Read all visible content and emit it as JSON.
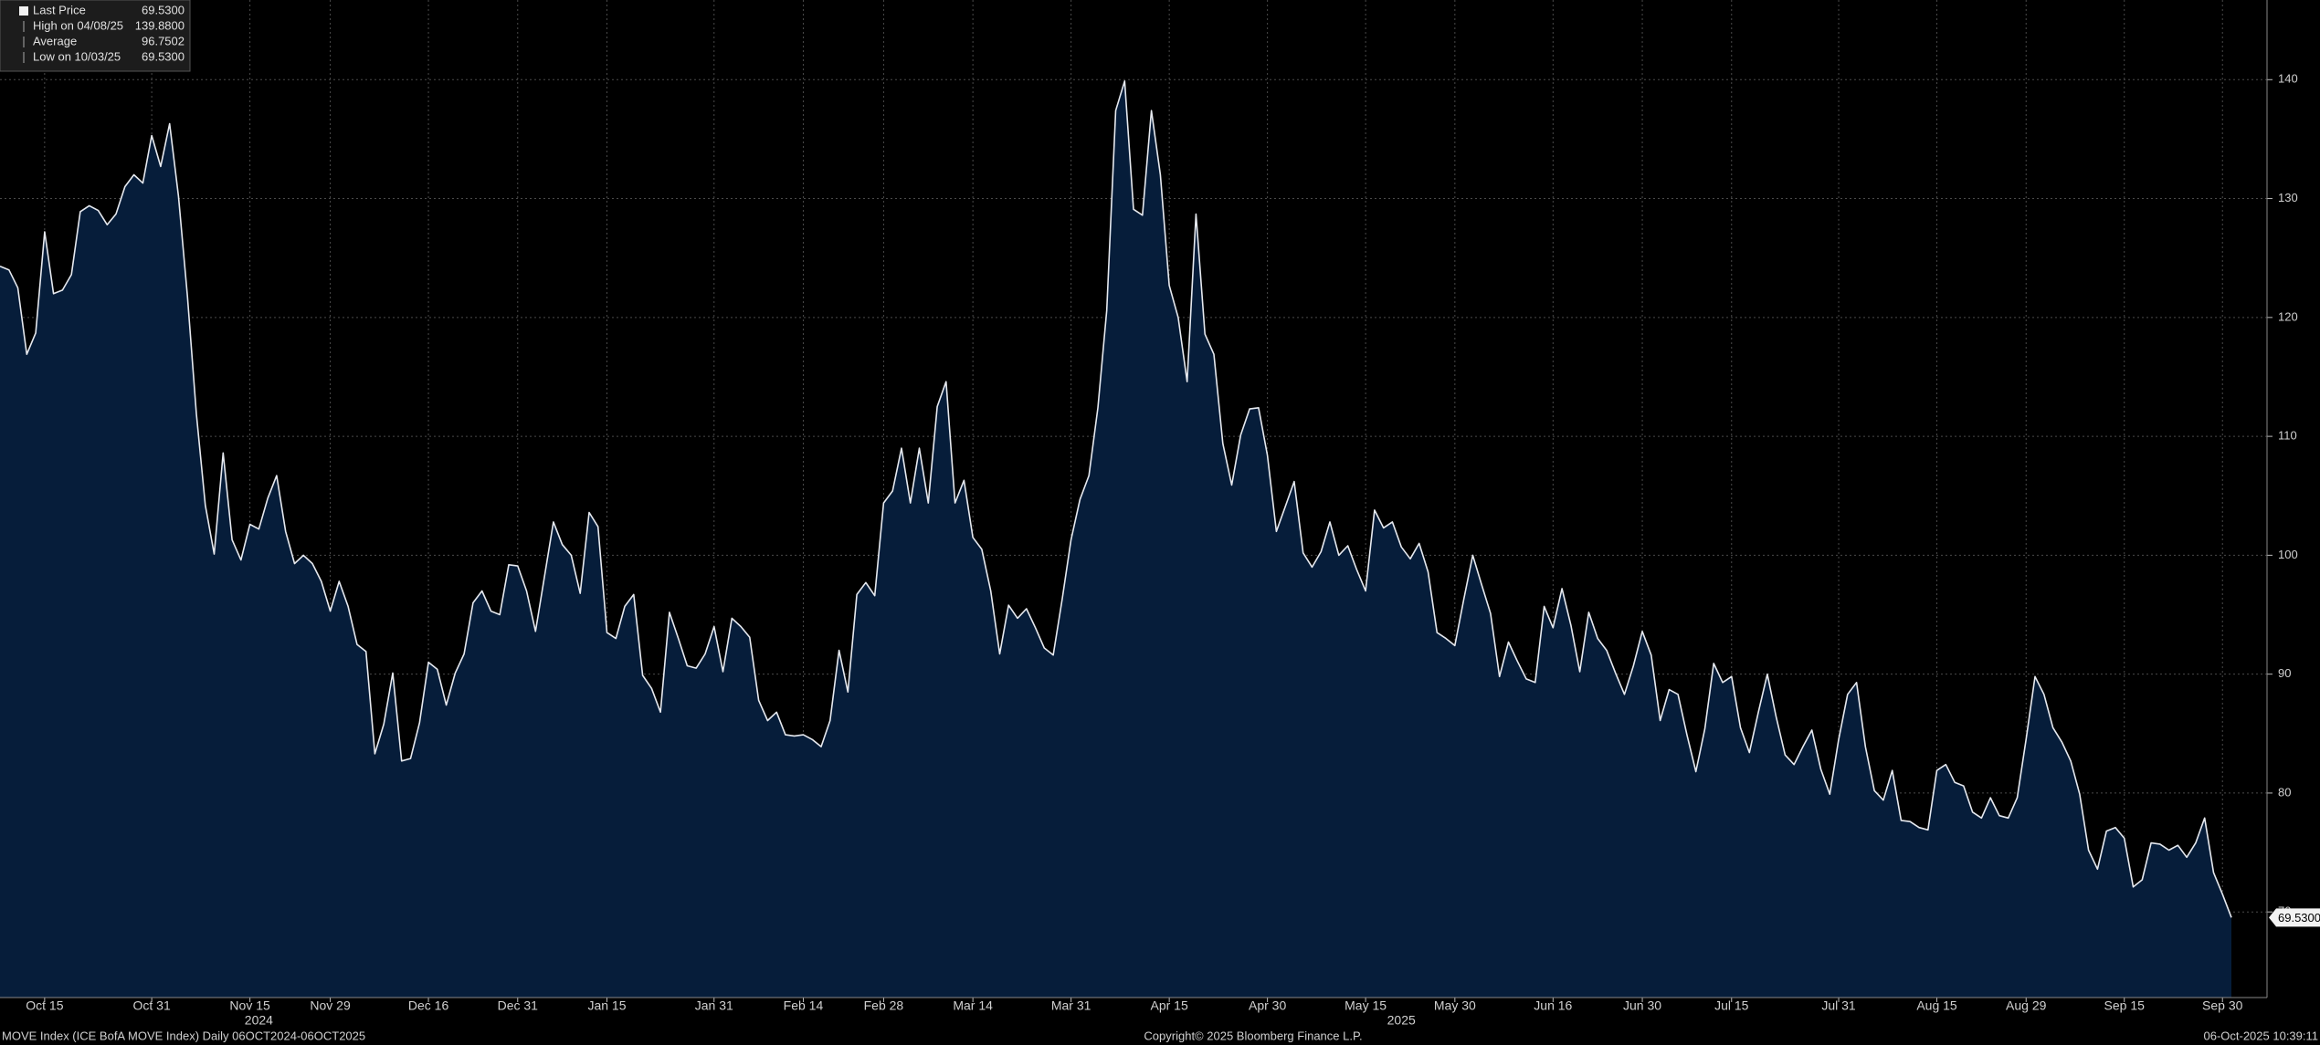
{
  "chart_data": {
    "type": "area",
    "legend": [
      {
        "label": "Last Price",
        "value": 69.53,
        "value_label": "69.5300"
      },
      {
        "label": "High on 04/08/25",
        "value": 139.88,
        "value_label": "139.8800"
      },
      {
        "label": "Average",
        "value": 96.7502
      },
      {
        "label": "Low on 10/03/25",
        "value": 69.53,
        "value_label": "69.5300"
      }
    ],
    "categories": [
      null,
      null,
      null,
      null,
      null,
      "Oct 15",
      null,
      null,
      null,
      null,
      null,
      null,
      null,
      null,
      null,
      null,
      null,
      "Oct 31",
      null,
      null,
      null,
      null,
      null,
      null,
      null,
      null,
      null,
      null,
      "Nov 15",
      null,
      null,
      null,
      null,
      null,
      null,
      null,
      null,
      "Nov 29",
      null,
      null,
      null,
      null,
      null,
      null,
      null,
      null,
      null,
      null,
      "Dec 16",
      null,
      null,
      null,
      null,
      null,
      null,
      null,
      null,
      null,
      "Dec 31",
      null,
      null,
      null,
      null,
      null,
      null,
      null,
      null,
      null,
      "Jan 15",
      null,
      null,
      null,
      null,
      null,
      null,
      null,
      null,
      null,
      null,
      null,
      "Jan 31",
      null,
      null,
      null,
      null,
      null,
      null,
      null,
      null,
      null,
      "Feb 14",
      null,
      null,
      null,
      null,
      null,
      null,
      null,
      null,
      "Feb 28",
      null,
      null,
      null,
      null,
      null,
      null,
      null,
      null,
      null,
      "Mar 14",
      null,
      null,
      null,
      null,
      null,
      null,
      null,
      null,
      null,
      null,
      "Mar 31",
      null,
      null,
      null,
      null,
      null,
      null,
      null,
      null,
      null,
      null,
      "Apr 15",
      null,
      null,
      null,
      null,
      null,
      null,
      null,
      null,
      null,
      null,
      "Apr 30",
      null,
      null,
      null,
      null,
      null,
      null,
      null,
      null,
      null,
      null,
      "May 15",
      null,
      null,
      null,
      null,
      null,
      null,
      null,
      null,
      null,
      "May 30",
      null,
      null,
      null,
      null,
      null,
      null,
      null,
      null,
      null,
      null,
      "Jun 16",
      null,
      null,
      null,
      null,
      null,
      null,
      null,
      null,
      null,
      "Jun 30",
      null,
      null,
      null,
      null,
      null,
      null,
      null,
      null,
      null,
      "Jul 15",
      null,
      null,
      null,
      null,
      null,
      null,
      null,
      null,
      null,
      null,
      null,
      "Jul 31",
      null,
      null,
      null,
      null,
      null,
      null,
      null,
      null,
      null,
      null,
      "Aug 15",
      null,
      null,
      null,
      null,
      null,
      null,
      null,
      null,
      null,
      "Aug 29",
      null,
      null,
      null,
      null,
      null,
      null,
      null,
      null,
      null,
      null,
      "Sep 15",
      null,
      null,
      null,
      null,
      null,
      null,
      null,
      null,
      null,
      null,
      "Sep 30",
      null
    ],
    "values": [
      124.3,
      124,
      122.5,
      116.9,
      118.7,
      127.2,
      122,
      122.3,
      123.6,
      128.9,
      129.4,
      129,
      127.8,
      128.7,
      131,
      132,
      131.3,
      135.3,
      132.7,
      136.3,
      130.2,
      121.8,
      111.9,
      104.2,
      100.1,
      108.6,
      101.3,
      99.6,
      102.6,
      102.2,
      104.8,
      106.7,
      102,
      99.3,
      100,
      99.3,
      97.8,
      95.3,
      97.8,
      95.7,
      92.5,
      91.9,
      83.3,
      85.8,
      90.1,
      82.7,
      82.9,
      85.9,
      91,
      90.4,
      87.4,
      90.1,
      91.7,
      96,
      97,
      95.3,
      95,
      99.2,
      99.1,
      97,
      93.6,
      98.2,
      102.8,
      100.9,
      100,
      96.8,
      103.6,
      102.4,
      93.5,
      93,
      95.7,
      96.7,
      89.9,
      88.8,
      86.8,
      95.2,
      93,
      90.7,
      90.5,
      91.7,
      94,
      90.2,
      94.7,
      94,
      93.1,
      87.8,
      86.1,
      86.8,
      84.9,
      84.8,
      84.9,
      84.5,
      83.9,
      86.1,
      92,
      88.5,
      96.7,
      97.7,
      96.6,
      104.4,
      105.4,
      109,
      104.4,
      109,
      104.4,
      112.5,
      114.6,
      104.4,
      106.3,
      101.5,
      100.5,
      97,
      91.7,
      95.8,
      94.7,
      95.5,
      93.9,
      92.2,
      91.6,
      96.3,
      101.3,
      104.7,
      106.7,
      112.4,
      120.6,
      137.4,
      139.88,
      129.1,
      128.6,
      137.4,
      132,
      122.7,
      120,
      114.6,
      128.7,
      118.6,
      116.9,
      109.4,
      105.9,
      110.1,
      112.3,
      112.4,
      108.4,
      102,
      104.1,
      106.2,
      100.2,
      99,
      100.3,
      102.8,
      100,
      100.8,
      98.8,
      97,
      103.8,
      102.3,
      102.8,
      100.7,
      99.7,
      101,
      98.6,
      93.5,
      93,
      92.4,
      96.3,
      100,
      97.5,
      95.1,
      89.8,
      92.7,
      91.1,
      89.6,
      89.3,
      95.7,
      93.9,
      97.2,
      94.1,
      90.2,
      95.2,
      93,
      92,
      90.1,
      88.3,
      90.7,
      93.6,
      91.6,
      86.1,
      88.7,
      88.3,
      84.9,
      81.8,
      85.4,
      90.9,
      89.3,
      89.8,
      85.5,
      83.4,
      86.8,
      90,
      86.4,
      83.2,
      82.4,
      83.9,
      85.3,
      82,
      79.9,
      84.5,
      88.3,
      89.3,
      83.9,
      80.2,
      79.4,
      81.9,
      77.7,
      77.6,
      77.1,
      76.9,
      81.9,
      82.4,
      80.9,
      80.6,
      78.4,
      77.9,
      79.6,
      78.1,
      77.9,
      79.6,
      84.5,
      89.8,
      88.3,
      85.5,
      84.3,
      82.7,
      79.9,
      75.2,
      73.6,
      76.8,
      77.1,
      76.2,
      72.1,
      72.7,
      75.8,
      75.7,
      75.2,
      75.6,
      74.6,
      75.8,
      77.9,
      73.3,
      71.5,
      69.53
    ],
    "color": "#e6e9ef",
    "fill": "#061d3a",
    "ylim": [
      62.8,
      146.7
    ],
    "yticks": [
      70,
      80,
      90,
      100,
      110,
      120,
      130,
      140
    ],
    "grid": true,
    "year_labels": [
      "2024",
      "2025"
    ],
    "footer": {
      "left": "MOVE Index (ICE BofA MOVE Index) Daily 06OCT2024-06OCT2025",
      "center": "Copyright© 2025 Bloomberg Finance L.P.",
      "right": "06-Oct-2025 10:39:11"
    }
  }
}
